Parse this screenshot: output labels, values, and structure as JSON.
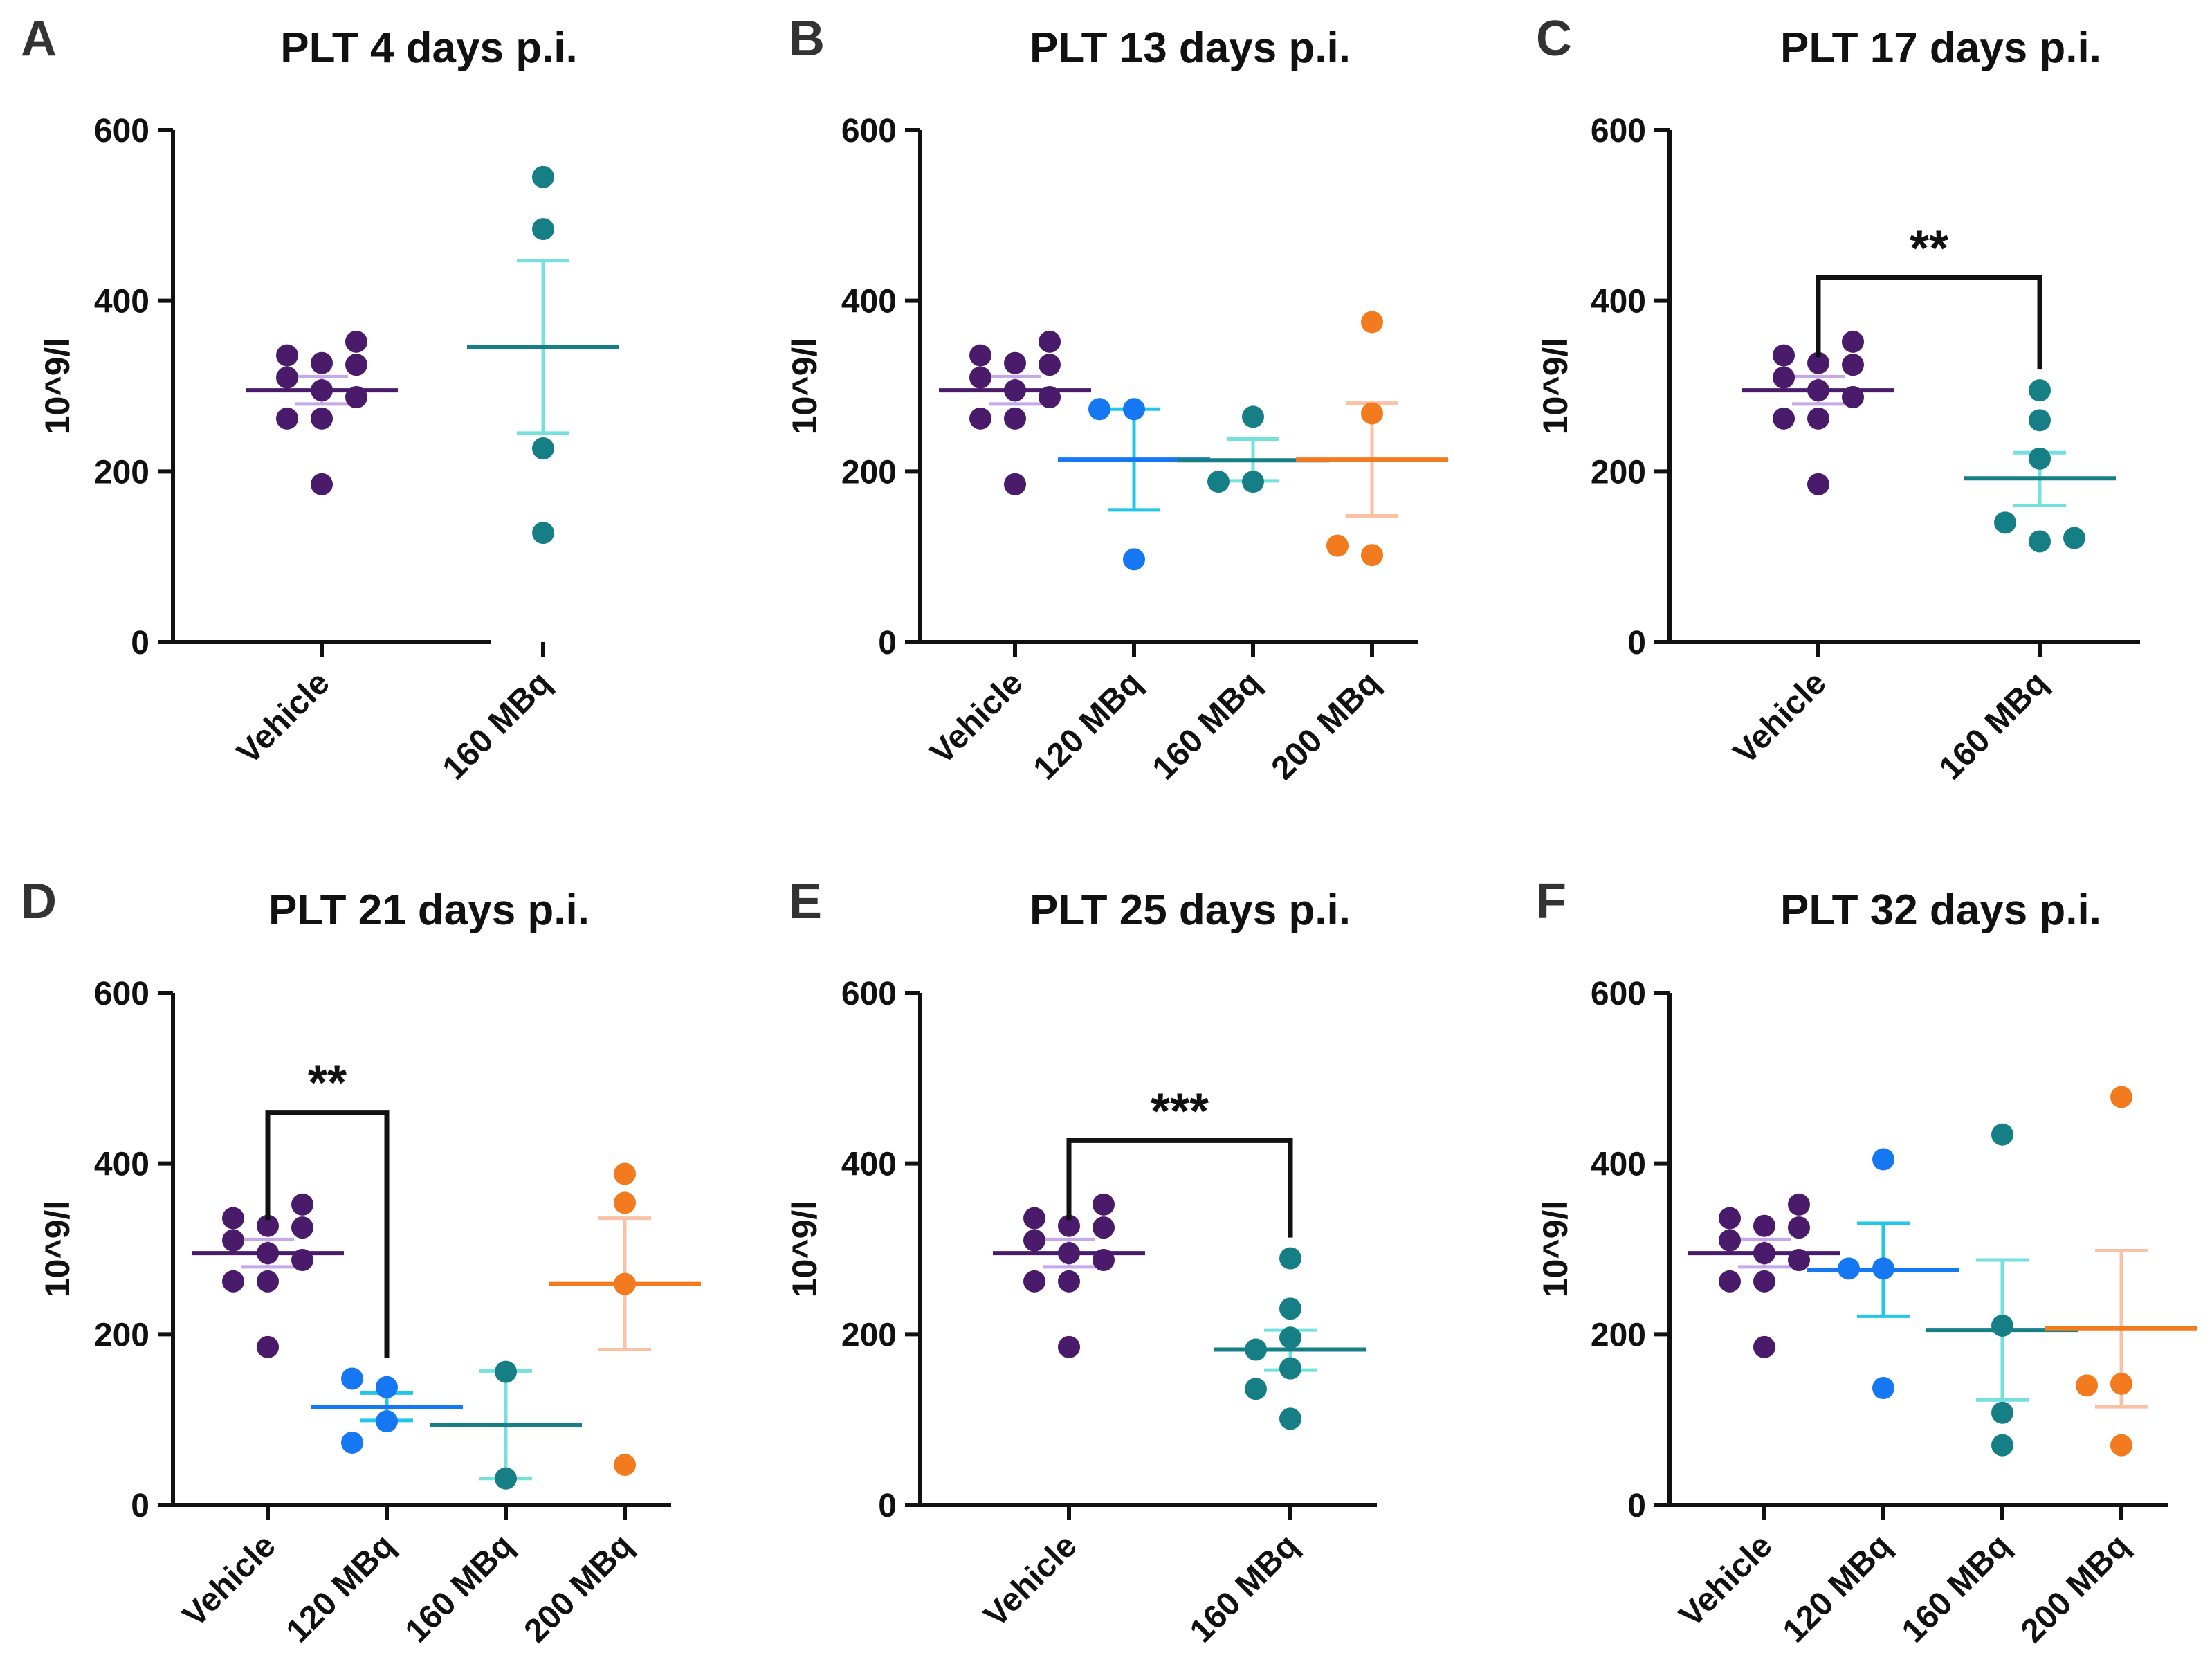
{
  "colors": {
    "vehicle": "#4a1a6b",
    "vehicle_err": "#c6a8e6",
    "mbq120": "#1677f2",
    "mbq120_err": "#22c7e8",
    "mbq160": "#167f86",
    "mbq160_err": "#74e1df",
    "mbq200": "#f27b1f",
    "mbq200_err": "#f9c2a4",
    "axis": "#111111"
  },
  "chart_data": [
    {
      "letter": "A",
      "type": "scatter",
      "title": "PLT 4 days p.i.",
      "ylabel": "10^9/l",
      "ylim": [
        0,
        600
      ],
      "yticks": [
        "0",
        "200",
        "400",
        "600"
      ],
      "categories": [
        "Vehicle",
        "160 MBq"
      ],
      "groups": [
        {
          "name": "Vehicle",
          "color": "vehicle",
          "err_color": "vehicle_err",
          "mean": 295,
          "sem_low": 279,
          "sem_high": 311,
          "values": [
            327,
            310,
            295,
            325,
            336,
            352,
            185,
            262,
            262,
            287
          ]
        },
        {
          "name": "160 MBq",
          "color": "mbq160",
          "err_color": "mbq160_err",
          "mean": 346,
          "sem_low": 245,
          "sem_high": 447,
          "values": [
            545,
            484,
            227,
            128
          ]
        }
      ],
      "significance": []
    },
    {
      "letter": "B",
      "type": "scatter",
      "title": "PLT 13 days p.i.",
      "ylabel": "10^9/l",
      "ylim": [
        0,
        600
      ],
      "yticks": [
        "0",
        "200",
        "400",
        "600"
      ],
      "categories": [
        "Vehicle",
        "120 MBq",
        "160 MBq",
        "200 MBq"
      ],
      "groups": [
        {
          "name": "Vehicle",
          "color": "vehicle",
          "err_color": "vehicle_err",
          "mean": 295,
          "sem_low": 279,
          "sem_high": 311,
          "values": [
            327,
            310,
            295,
            325,
            336,
            352,
            185,
            262,
            262,
            287
          ]
        },
        {
          "name": "120 MBq",
          "color": "mbq120",
          "err_color": "mbq120_err",
          "mean": 214,
          "sem_low": 155,
          "sem_high": 273,
          "values": [
            273,
            273,
            97
          ]
        },
        {
          "name": "160 MBq",
          "color": "mbq160",
          "err_color": "mbq160_err",
          "mean": 213,
          "sem_low": 189,
          "sem_high": 238,
          "values": [
            264,
            188,
            188
          ]
        },
        {
          "name": "200 MBq",
          "color": "mbq200",
          "err_color": "mbq200_err",
          "mean": 214,
          "sem_low": 148,
          "sem_high": 280,
          "values": [
            375,
            268,
            102,
            113
          ]
        }
      ],
      "significance": []
    },
    {
      "letter": "C",
      "type": "scatter",
      "title": "PLT 17 days p.i.",
      "ylabel": "10^9/l",
      "ylim": [
        0,
        600
      ],
      "yticks": [
        "0",
        "200",
        "400",
        "600"
      ],
      "categories": [
        "Vehicle",
        "160 MBq"
      ],
      "groups": [
        {
          "name": "Vehicle",
          "color": "vehicle",
          "err_color": "vehicle_err",
          "mean": 295,
          "sem_low": 279,
          "sem_high": 311,
          "values": [
            327,
            310,
            295,
            325,
            336,
            352,
            185,
            262,
            262,
            287
          ]
        },
        {
          "name": "160 MBq",
          "color": "mbq160",
          "err_color": "mbq160_err",
          "mean": 192,
          "sem_low": 160,
          "sem_high": 222,
          "values": [
            295,
            260,
            215,
            118,
            140,
            122
          ]
        }
      ],
      "significance": [
        {
          "from": 0,
          "to": 1,
          "level": 427,
          "label": "**"
        }
      ]
    },
    {
      "letter": "D",
      "type": "scatter",
      "title": "PLT 21 days p.i.",
      "ylabel": "10^9/l",
      "ylim": [
        0,
        600
      ],
      "yticks": [
        "0",
        "200",
        "400",
        "600"
      ],
      "categories": [
        "Vehicle",
        "120 MBq",
        "160 MBq",
        "200 MBq"
      ],
      "groups": [
        {
          "name": "Vehicle",
          "color": "vehicle",
          "err_color": "vehicle_err",
          "mean": 295,
          "sem_low": 279,
          "sem_high": 311,
          "values": [
            327,
            310,
            295,
            325,
            336,
            352,
            185,
            262,
            262,
            287
          ]
        },
        {
          "name": "120 MBq",
          "color": "mbq120",
          "err_color": "mbq120_err",
          "mean": 115,
          "sem_low": 99,
          "sem_high": 131,
          "values": [
            138,
            148,
            98,
            73
          ]
        },
        {
          "name": "160 MBq",
          "color": "mbq160",
          "err_color": "mbq160_err",
          "mean": 94,
          "sem_low": 31,
          "sem_high": 157,
          "values": [
            156,
            31
          ]
        },
        {
          "name": "200 MBq",
          "color": "mbq200",
          "err_color": "mbq200_err",
          "mean": 259,
          "sem_low": 182,
          "sem_high": 336,
          "values": [
            388,
            354,
            259,
            47
          ]
        }
      ],
      "significance": [
        {
          "from": 0,
          "to": 1,
          "level": 460,
          "label": "**"
        }
      ]
    },
    {
      "letter": "E",
      "type": "scatter",
      "title": "PLT 25 days p.i.",
      "ylabel": "10^9/l",
      "ylim": [
        0,
        600
      ],
      "yticks": [
        "0",
        "200",
        "400",
        "600"
      ],
      "categories": [
        "Vehicle",
        "160 MBq"
      ],
      "groups": [
        {
          "name": "Vehicle",
          "color": "vehicle",
          "err_color": "vehicle_err",
          "mean": 295,
          "sem_low": 279,
          "sem_high": 311,
          "values": [
            327,
            310,
            295,
            325,
            336,
            352,
            185,
            262,
            262,
            287
          ]
        },
        {
          "name": "160 MBq",
          "color": "mbq160",
          "err_color": "mbq160_err",
          "mean": 182,
          "sem_low": 158,
          "sem_high": 205,
          "values": [
            289,
            230,
            196,
            182,
            160,
            136,
            101
          ]
        }
      ],
      "significance": [
        {
          "from": 0,
          "to": 1,
          "level": 427,
          "label": "***"
        }
      ]
    },
    {
      "letter": "F",
      "type": "scatter",
      "title": "PLT 32 days p.i.",
      "ylabel": "10^9/l",
      "ylim": [
        0,
        600
      ],
      "yticks": [
        "0",
        "200",
        "400",
        "600"
      ],
      "categories": [
        "Vehicle",
        "120 MBq",
        "160 MBq",
        "200 MBq"
      ],
      "groups": [
        {
          "name": "Vehicle",
          "color": "vehicle",
          "err_color": "vehicle_err",
          "mean": 295,
          "sem_low": 279,
          "sem_high": 311,
          "values": [
            327,
            310,
            295,
            325,
            336,
            352,
            185,
            262,
            262,
            287
          ]
        },
        {
          "name": "120 MBq",
          "color": "mbq120",
          "err_color": "mbq120_err",
          "mean": 275,
          "sem_low": 221,
          "sem_high": 330,
          "values": [
            405,
            277,
            277,
            137
          ]
        },
        {
          "name": "160 MBq",
          "color": "mbq160",
          "err_color": "mbq160_err",
          "mean": 205,
          "sem_low": 123,
          "sem_high": 287,
          "values": [
            434,
            210,
            108,
            70
          ]
        },
        {
          "name": "200 MBq",
          "color": "mbq200",
          "err_color": "mbq200_err",
          "mean": 207,
          "sem_low": 115,
          "sem_high": 298,
          "values": [
            478,
            142,
            140,
            70
          ]
        }
      ],
      "significance": []
    }
  ]
}
